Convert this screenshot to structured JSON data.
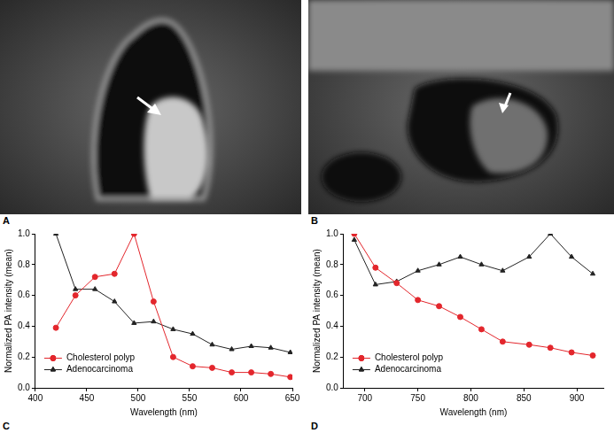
{
  "images": [
    {
      "label": "A"
    },
    {
      "label": "B"
    }
  ],
  "chart_data": [
    {
      "type": "line",
      "annotations": [
        "C"
      ],
      "xlabel": "Wavelength (nm)",
      "ylabel": "Normalized PA intensity (mean)",
      "xlim": [
        400,
        650
      ],
      "xticks": [
        400,
        450,
        500,
        550,
        600,
        650
      ],
      "ylim": [
        0,
        1
      ],
      "yticks": [
        {
          "value": 0,
          "label": "0.0"
        },
        0.2,
        0.4,
        0.6,
        0.8,
        {
          "value": 1,
          "label": "1.0"
        }
      ],
      "grid": false,
      "legend": "lower left",
      "x": [
        420,
        439,
        458,
        477,
        496,
        515,
        534,
        553,
        572,
        591,
        610,
        629,
        648
      ],
      "series": [
        {
          "name": "Cholesterol polyp",
          "color": "#e3262c",
          "marker": "circle",
          "line_style": "solid",
          "values": [
            0.39,
            0.6,
            0.72,
            0.74,
            1.0,
            0.56,
            0.2,
            0.14,
            0.13,
            0.1,
            0.1,
            0.09,
            0.07
          ]
        },
        {
          "name": "Adenocarcinoma",
          "color": "#222222",
          "marker": "triangle",
          "line_style": "solid",
          "values": [
            1.0,
            0.64,
            0.64,
            0.56,
            0.42,
            0.43,
            0.38,
            0.35,
            0.28,
            0.25,
            0.27,
            0.26,
            0.23
          ]
        }
      ]
    },
    {
      "type": "line",
      "annotations": [
        "D"
      ],
      "xlabel": "Wavelength (nm)",
      "ylabel": "Normalized PA intensity (mean)",
      "xlim": [
        680,
        925
      ],
      "xticks": [
        700,
        750,
        800,
        850,
        900
      ],
      "ylim": [
        0,
        1
      ],
      "yticks": [
        {
          "value": 0,
          "label": "0.0"
        },
        0.2,
        0.4,
        0.6,
        0.8,
        {
          "value": 1,
          "label": "1.0"
        }
      ],
      "grid": false,
      "legend": "lower left",
      "x": [
        690,
        710,
        730,
        750,
        770,
        790,
        810,
        830,
        855,
        875,
        895,
        915
      ],
      "series": [
        {
          "name": "Cholesterol polyp",
          "color": "#e3262c",
          "marker": "circle",
          "line_style": "solid",
          "values": [
            1.0,
            0.78,
            0.68,
            0.57,
            0.53,
            0.46,
            0.38,
            0.3,
            0.28,
            0.26,
            0.23,
            0.21
          ]
        },
        {
          "name": "Adenocarcinoma",
          "color": "#222222",
          "marker": "triangle",
          "line_style": "solid",
          "values": [
            0.96,
            0.67,
            0.69,
            0.76,
            0.8,
            0.85,
            0.8,
            0.76,
            0.85,
            1.0,
            0.85,
            0.74
          ]
        }
      ]
    }
  ]
}
